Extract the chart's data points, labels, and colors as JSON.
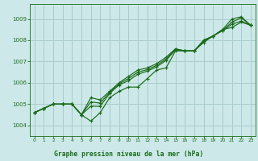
{
  "title": "Graphe pression niveau de la mer (hPa)",
  "bg_color": "#cce8e8",
  "grid_color": "#aacccc",
  "line_color": "#1a6b1a",
  "xlim": [
    -0.5,
    23.5
  ],
  "ylim": [
    1003.5,
    1009.7
  ],
  "yticks": [
    1004,
    1005,
    1006,
    1007,
    1008,
    1009
  ],
  "xticks": [
    0,
    1,
    2,
    3,
    4,
    5,
    6,
    7,
    8,
    9,
    10,
    11,
    12,
    13,
    14,
    15,
    16,
    17,
    18,
    19,
    20,
    21,
    22,
    23
  ],
  "series": [
    [
      1004.6,
      1004.8,
      1005.0,
      1005.0,
      1005.0,
      1004.5,
      1004.2,
      1004.6,
      1005.3,
      1005.6,
      1005.8,
      1005.8,
      1006.2,
      1006.6,
      1006.7,
      1007.5,
      1007.5,
      1007.5,
      1008.0,
      1008.2,
      1008.5,
      1008.6,
      1008.85,
      1008.7
    ],
    [
      1004.6,
      1004.8,
      1005.0,
      1005.0,
      1005.0,
      1004.5,
      1005.3,
      1005.2,
      1005.6,
      1006.0,
      1006.3,
      1006.6,
      1006.7,
      1006.9,
      1007.2,
      1007.6,
      1007.5,
      1007.5,
      1008.0,
      1008.2,
      1008.5,
      1009.0,
      1009.1,
      1008.7
    ],
    [
      1004.6,
      1004.8,
      1005.0,
      1005.0,
      1005.0,
      1004.5,
      1004.9,
      1004.9,
      1005.5,
      1005.9,
      1006.1,
      1006.4,
      1006.55,
      1006.75,
      1007.05,
      1007.55,
      1007.5,
      1007.5,
      1007.9,
      1008.2,
      1008.45,
      1008.75,
      1008.9,
      1008.7
    ],
    [
      1004.6,
      1004.8,
      1005.0,
      1005.0,
      1005.0,
      1004.5,
      1005.1,
      1005.05,
      1005.55,
      1005.95,
      1006.2,
      1006.5,
      1006.62,
      1006.82,
      1007.12,
      1007.58,
      1007.5,
      1007.5,
      1007.95,
      1008.2,
      1008.45,
      1008.85,
      1009.05,
      1008.7
    ]
  ]
}
